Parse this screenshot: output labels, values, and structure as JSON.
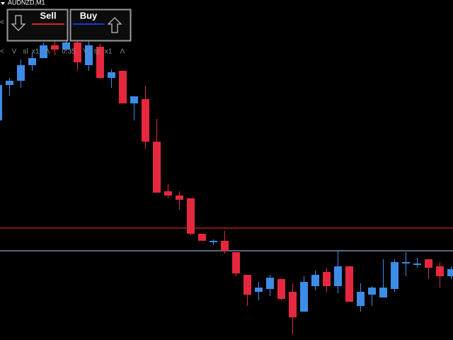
{
  "window": {
    "symbol": "AUDNZD,M1"
  },
  "panel": {
    "left_arrow": "<",
    "sell": "Sell",
    "buy": "Buy",
    "controls": [
      "<",
      "V",
      "sl",
      "x1",
      "Λ",
      "0.35",
      "V",
      "tp",
      "x1",
      "Λ"
    ]
  },
  "chart_data": {
    "type": "candlestick",
    "ylim": [
      0,
      480
    ],
    "up_color": "#3d8ce6",
    "down_color": "#e5283e",
    "open": [
      310,
      360,
      366,
      388,
      398,
      416,
      410,
      420,
      388,
      414,
      370,
      380,
      334,
      340,
      280,
      210,
      204,
      200,
      150,
      138,
      140,
      124,
      92,
      68,
      72,
      86,
      68,
      40,
      76,
      96,
      76,
      104,
      48,
      64,
      60,
      72,
      108,
      106,
      114,
      104,
      90
    ],
    "high": [
      365,
      370,
      396,
      406,
      420,
      422,
      424,
      424,
      430,
      418,
      382,
      380,
      344,
      358,
      312,
      220,
      210,
      200,
      150,
      142,
      154,
      124,
      92,
      82,
      92,
      86,
      80,
      90,
      98,
      102,
      126,
      104,
      80,
      76,
      114,
      114,
      124,
      116,
      114,
      110,
      104
    ],
    "low": [
      310,
      345,
      356,
      380,
      398,
      402,
      408,
      380,
      380,
      368,
      356,
      334,
      310,
      270,
      208,
      200,
      184,
      148,
      140,
      134,
      122,
      90,
      48,
      56,
      62,
      56,
      8,
      40,
      70,
      68,
      66,
      54,
      40,
      48,
      60,
      68,
      90,
      102,
      86,
      74,
      86
    ],
    "close": [
      360,
      366,
      388,
      398,
      416,
      410,
      420,
      392,
      416,
      370,
      378,
      334,
      344,
      280,
      208,
      204,
      198,
      150,
      140,
      140,
      126,
      94,
      64,
      74,
      88,
      58,
      32,
      82,
      92,
      76,
      104,
      54,
      68,
      74,
      74,
      110,
      110,
      108,
      102,
      90,
      100
    ],
    "levels": [
      {
        "value": 158,
        "color": "#d42420"
      },
      {
        "value": 126,
        "color": "#8ea8c8"
      }
    ]
  }
}
